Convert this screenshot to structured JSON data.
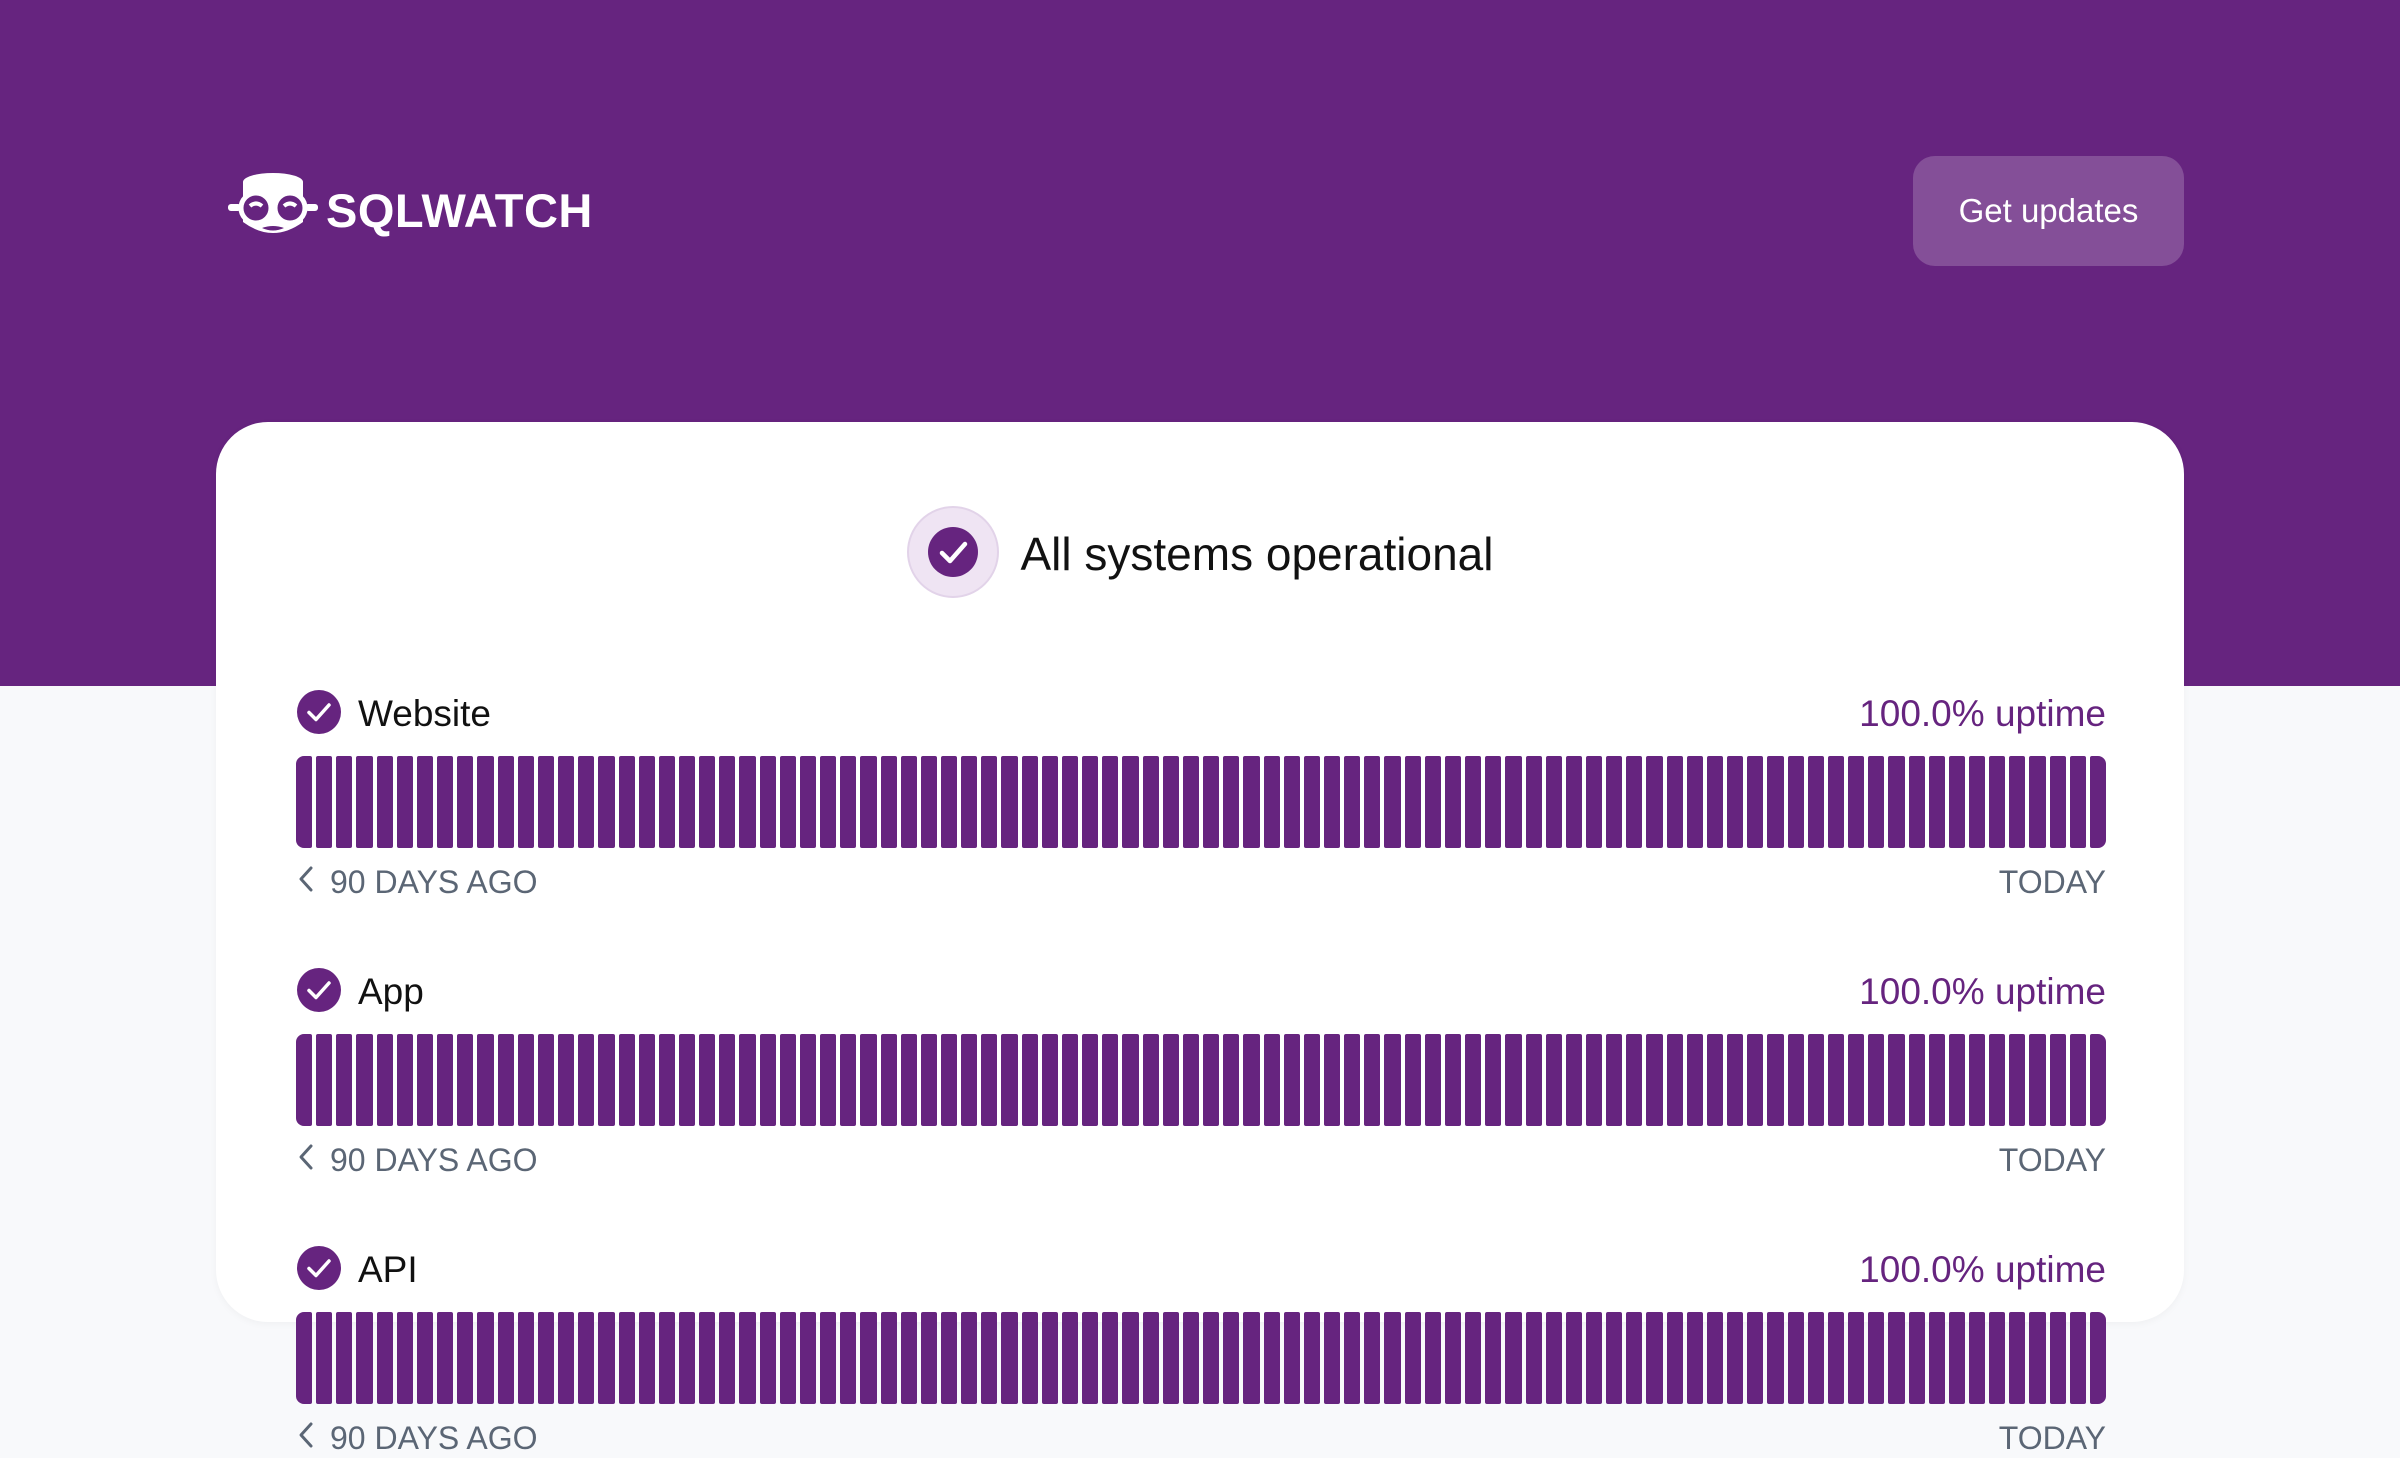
{
  "brand": {
    "logo_text": "SQLWATCH",
    "logo_icon": "mascot-glasses-icon"
  },
  "header": {
    "cta_label": "Get updates"
  },
  "status": {
    "title": "All systems operational",
    "icon": "check-circle-icon"
  },
  "colors": {
    "accent": "#66247f",
    "background": "#f8f9fb",
    "muted_text": "#5b6675"
  },
  "components": [
    {
      "name": "Website",
      "uptime": "100.0% uptime",
      "range_start": "90 DAYS AGO",
      "range_end": "TODAY",
      "days": 90
    },
    {
      "name": "App",
      "uptime": "100.0% uptime",
      "range_start": "90 DAYS AGO",
      "range_end": "TODAY",
      "days": 90
    },
    {
      "name": "API",
      "uptime": "100.0% uptime",
      "range_start": "90 DAYS AGO",
      "range_end": "TODAY",
      "days": 90
    }
  ]
}
